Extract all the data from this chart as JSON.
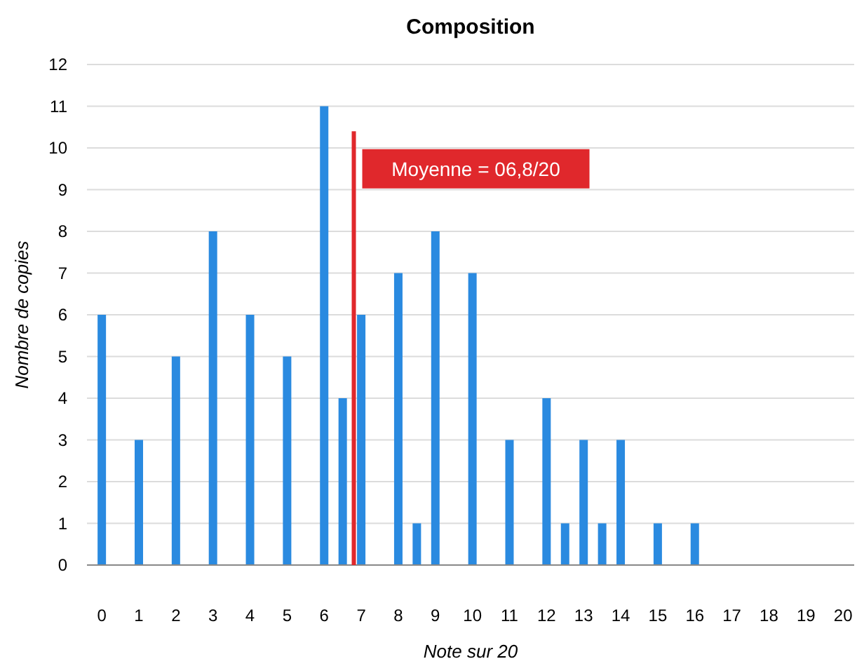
{
  "chart_data": {
    "type": "bar",
    "title": "Composition",
    "xlabel": "Note sur 20",
    "ylabel": "Nombre de copies",
    "x": [
      0,
      1,
      2,
      3,
      4,
      5,
      6,
      6.5,
      7,
      8,
      8.5,
      9,
      10,
      11,
      12,
      12.5,
      13,
      13.5,
      14,
      15,
      16
    ],
    "values": [
      6,
      3,
      5,
      8,
      6,
      5,
      11,
      4,
      6,
      7,
      1,
      8,
      7,
      3,
      4,
      1,
      3,
      1,
      3,
      1,
      1
    ],
    "color": "#2a8ae0",
    "xlim": [
      -0.4,
      20.3
    ],
    "xticks": [
      0,
      1,
      2,
      3,
      4,
      5,
      6,
      7,
      8,
      9,
      10,
      11,
      12,
      13,
      14,
      15,
      16,
      17,
      18,
      19,
      20
    ],
    "ylim": [
      0,
      12
    ],
    "yticks": [
      0,
      1,
      2,
      3,
      4,
      5,
      6,
      7,
      8,
      9,
      10,
      11,
      12
    ],
    "grid": "y",
    "ref_lines": [
      {
        "axis": "x",
        "value": 6.8,
        "label": "Moyenne = 06,8/20",
        "color": "#e0282c"
      }
    ]
  }
}
